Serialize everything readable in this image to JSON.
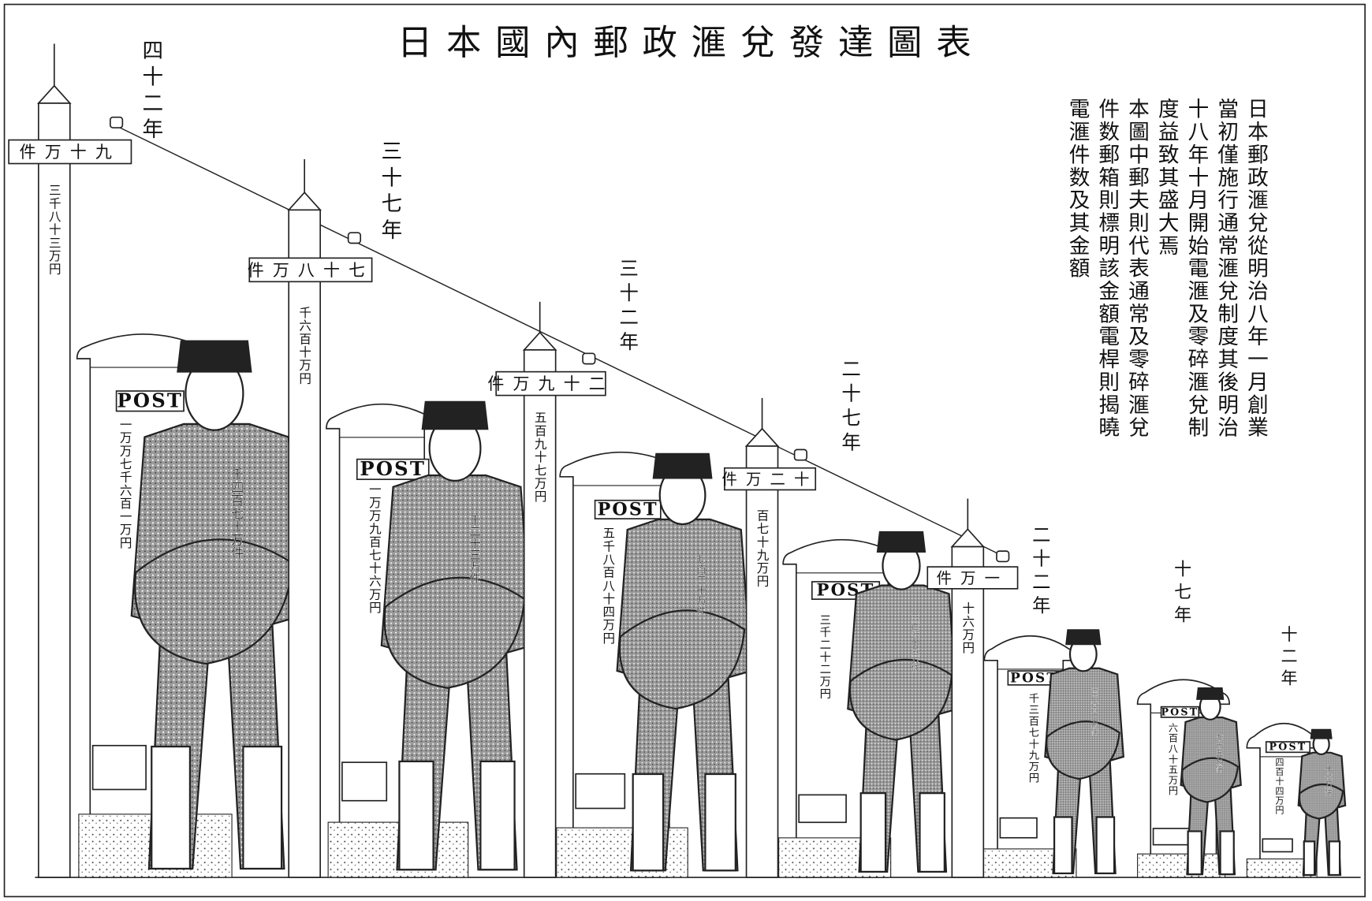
{
  "title": "日本國內郵政滙兌發達圖表",
  "groups": [
    {
      "year": "四十二年",
      "telegraph_count": "九十万件",
      "telegraph_amount": "三千八十三万円",
      "mailbox_label": "POST",
      "mailbox_amount": "一万万七千六百一万円",
      "postman_count": "千四百七十万件"
    },
    {
      "year": "三十七年",
      "telegraph_count": "七十八万件",
      "telegraph_amount": "千六百十万円",
      "mailbox_label": "POST",
      "mailbox_amount": "一万万九百七十六万円",
      "postman_count": "千二十三万件"
    },
    {
      "year": "三十二年",
      "telegraph_count": "二十九万件",
      "telegraph_amount": "五百九十七万円",
      "mailbox_label": "POST",
      "mailbox_amount": "五千八百八十四万円",
      "postman_count": "七百二十万件"
    },
    {
      "year": "二十七年",
      "telegraph_count": "十二万件",
      "telegraph_amount": "百七十九万円",
      "mailbox_label": "POST",
      "mailbox_amount": "三千二十二万円",
      "postman_count": "三百七十五万件"
    },
    {
      "year": "二十二年",
      "telegraph_count": "一万件",
      "telegraph_amount": "十六万円",
      "mailbox_label": "POST",
      "mailbox_amount": "千三百七十九万円",
      "postman_count": "百八十二万件"
    },
    {
      "year": "十七年",
      "mailbox_label": "POST",
      "mailbox_amount": "六百八十五万円",
      "postman_count": "七十五万件"
    },
    {
      "year": "十二年",
      "mailbox_label": "POST",
      "mailbox_amount": "四百十四万円",
      "postman_count": "十七万件"
    }
  ],
  "notes": [
    "日本郵政滙兌從明治八年一月創業",
    "當初僅施行通常滙兌制度其後明治",
    "十八年十月開始電滙及零碎滙兌制",
    "度益致其盛大焉",
    "本圖中郵夫則代表通常及零碎滙兌",
    "件数郵箱則標明該金額電桿則揭曉",
    "電滙件数及其金額"
  ]
}
